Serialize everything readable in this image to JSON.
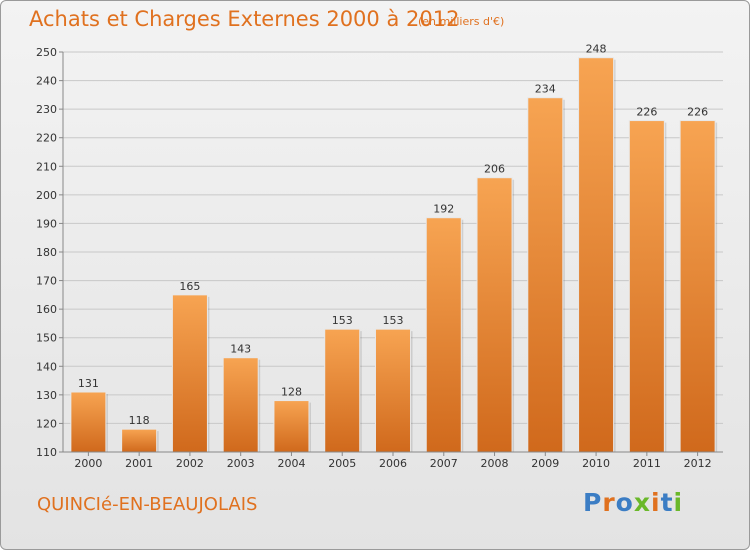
{
  "title": "Achats et Charges Externes 2000 à 2012",
  "subtitle": "(en milliers d'€)",
  "place": "QUINCIé-EN-BEAUJOLAIS",
  "brand": "Proxiti",
  "colors": {
    "accent": "#e0711f",
    "bar_top": "#f7a452",
    "bar_bottom": "#d0691c",
    "logo_letters": [
      "#3b7dc4",
      "#e0711f",
      "#3b7dc4",
      "#6ab82a",
      "#e0711f",
      "#3b7dc4",
      "#6ab82a"
    ]
  },
  "chart_data": {
    "type": "bar",
    "title": "Achats et Charges Externes 2000 à 2012",
    "subtitle": "(en milliers d'€)",
    "categories": [
      "2000",
      "2001",
      "2002",
      "2003",
      "2004",
      "2005",
      "2006",
      "2007",
      "2008",
      "2009",
      "2010",
      "2011",
      "2012"
    ],
    "values": [
      131,
      118,
      165,
      143,
      128,
      153,
      153,
      192,
      206,
      234,
      248,
      226,
      226
    ],
    "ylim": [
      110,
      250
    ],
    "yticks": [
      110,
      120,
      130,
      140,
      150,
      160,
      170,
      180,
      190,
      200,
      210,
      220,
      230,
      240,
      250
    ],
    "grid": true,
    "legend": "none"
  }
}
